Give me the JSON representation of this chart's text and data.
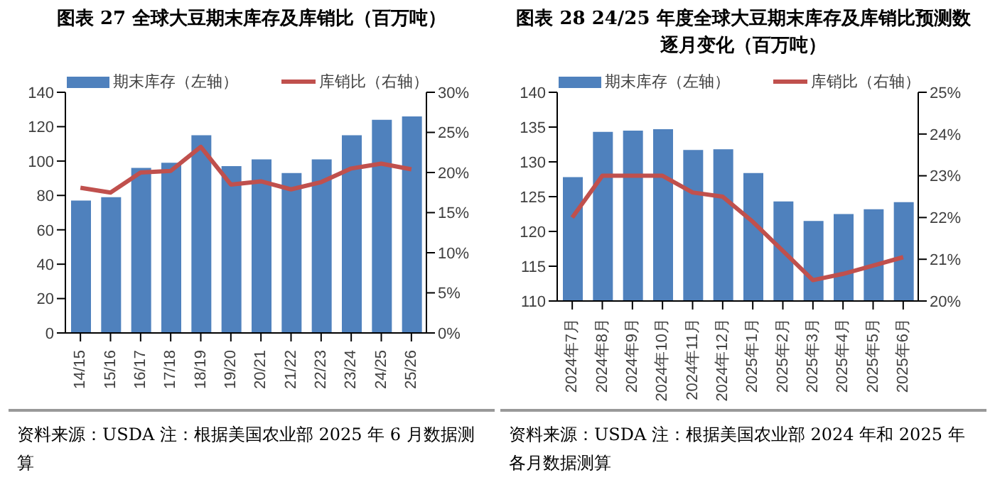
{
  "chart_data": [
    {
      "type": "bar",
      "title": "图表 27 全球大豆期末库存及库销比（百万吨）",
      "categories": [
        "14/15",
        "15/16",
        "16/17",
        "17/18",
        "18/19",
        "19/20",
        "20/21",
        "21/22",
        "22/23",
        "23/24",
        "24/25",
        "25/26"
      ],
      "series": [
        {
          "name": "期末库存（左轴）",
          "color": "#4f81bd",
          "values": [
            77,
            79,
            96,
            99,
            115,
            97,
            101,
            93,
            101,
            115,
            124,
            126
          ]
        },
        {
          "name": "库销比（右轴）",
          "type": "line",
          "axis": "y2",
          "color": "#c0504d",
          "values": [
            18.1,
            17.5,
            20.0,
            20.2,
            23.2,
            18.5,
            18.9,
            17.9,
            18.8,
            20.5,
            21.1,
            20.4
          ]
        }
      ],
      "ylim": [
        0,
        140
      ],
      "yticks": [
        0,
        20,
        40,
        60,
        80,
        100,
        120,
        140
      ],
      "y2lim": [
        0,
        30
      ],
      "y2ticks": [
        {
          "value": 0,
          "label": "0%"
        },
        {
          "value": 5,
          "label": "5%"
        },
        {
          "value": 10,
          "label": "10%"
        },
        {
          "value": 15,
          "label": "15%"
        },
        {
          "value": 20,
          "label": "20%"
        },
        {
          "value": 25,
          "label": "25%"
        },
        {
          "value": 30,
          "label": "30%"
        }
      ],
      "grid": false,
      "legend": "top",
      "marker": "none",
      "line_style": "solid",
      "annotations": [
        "资料来源：USDA 注：根据美国农业部 2025 年 6 月数据测算"
      ]
    },
    {
      "type": "bar",
      "title": "图表 28 24/25 年度全球大豆期末库存及库销比预测数逐月变化（百万吨）",
      "categories": [
        "2024年7月",
        "2024年8月",
        "2024年9月",
        "2024年10月",
        "2024年11月",
        "2024年12月",
        "2025年1月",
        "2025年2月",
        "2025年3月",
        "2025年4月",
        "2025年5月",
        "2025年6月"
      ],
      "series": [
        {
          "name": "期末库存（左轴）",
          "color": "#4f81bd",
          "values": [
            127.8,
            134.3,
            134.5,
            134.7,
            131.7,
            131.8,
            128.4,
            124.3,
            121.5,
            122.5,
            123.2,
            124.2
          ]
        },
        {
          "name": "库销比（右轴）",
          "type": "line",
          "axis": "y2",
          "color": "#c0504d",
          "values": [
            22.0,
            23.0,
            23.0,
            23.0,
            22.6,
            22.5,
            21.9,
            21.2,
            20.5,
            20.65,
            20.85,
            21.05
          ]
        }
      ],
      "ylim": [
        110,
        140
      ],
      "yticks": [
        110,
        115,
        120,
        125,
        130,
        135,
        140
      ],
      "y2lim": [
        20,
        25
      ],
      "y2ticks": [
        {
          "value": 20,
          "label": "20%"
        },
        {
          "value": 21,
          "label": "21%"
        },
        {
          "value": 22,
          "label": "22%"
        },
        {
          "value": 23,
          "label": "23%"
        },
        {
          "value": 24,
          "label": "24%"
        },
        {
          "value": 25,
          "label": "25%"
        }
      ],
      "grid": false,
      "legend": "top",
      "marker": "none",
      "line_style": "solid",
      "annotations": [
        "资料来源：USDA 注：根据美国农业部 2024 年和 2025 年各月数据测算"
      ]
    }
  ]
}
